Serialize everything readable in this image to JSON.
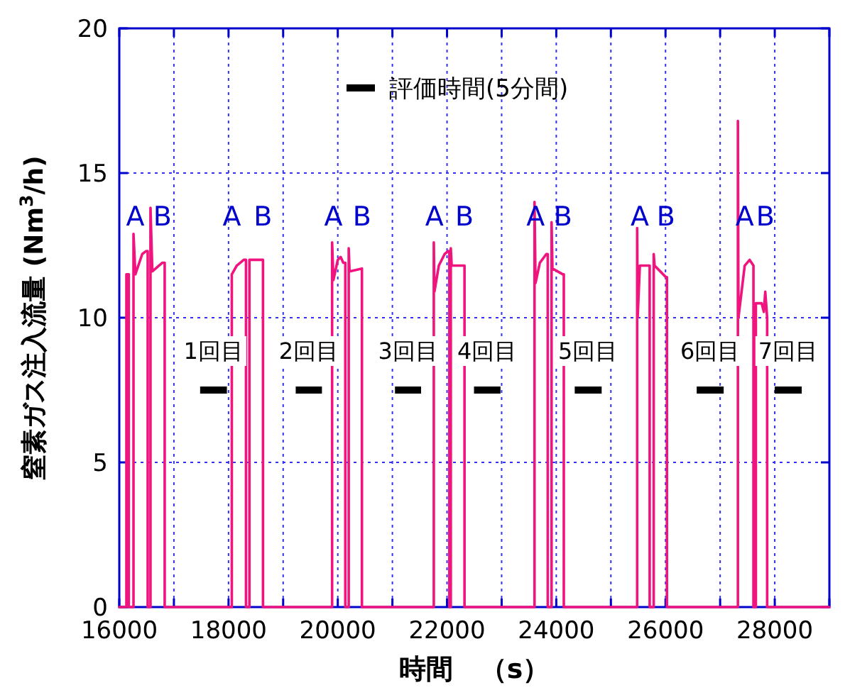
{
  "chart_data": {
    "type": "line",
    "xlabel": "時間　（s）",
    "ylabel": "窒素ガス注入流量 (Nm$^{3}$/h)",
    "xlim": [
      16000,
      29000
    ],
    "xticks": [
      16000,
      {
        "value": 17000,
        "label": null
      },
      18000,
      {
        "value": 19000,
        "label": null
      },
      20000,
      {
        "value": 21000,
        "label": null
      },
      22000,
      {
        "value": 23000,
        "label": null
      },
      24000,
      {
        "value": 25000,
        "label": null
      },
      26000,
      {
        "value": 27000,
        "label": null
      },
      28000,
      {
        "value": 29000,
        "label": null
      }
    ],
    "ylim": [
      0,
      20
    ],
    "yticks": [
      0,
      5,
      10,
      15,
      20
    ],
    "grid": true,
    "legend": "top",
    "line_style": "solid",
    "marker": "none",
    "series": [
      {
        "name": null,
        "color": "#f0147f",
        "x": [
          16000,
          16130,
          16130,
          16174,
          16174,
          16260,
          16260,
          16294,
          16420,
          16490,
          16520,
          16520,
          16571,
          16571,
          16605,
          16790,
          16831,
          16831,
          18060,
          18060,
          18150,
          18278,
          18320,
          18320,
          18382,
          18382,
          18631,
          18631,
          19896,
          19896,
          19920,
          20000,
          20052,
          20100,
          20138,
          20138,
          20200,
          20200,
          20215,
          20442,
          20442,
          21758,
          21758,
          21770,
          21850,
          21956,
          22020,
          22043,
          22043,
          22069,
          22069,
          22085,
          22320,
          22320,
          23602,
          23602,
          23620,
          23700,
          23818,
          23844,
          23844,
          23914,
          23914,
          23930,
          24122,
          24138,
          24138,
          25481,
          25481,
          25490,
          25530,
          25710,
          25710,
          25784,
          25784,
          25800,
          26008,
          26026,
          26026,
          27325,
          27325,
          27335,
          27450,
          27540,
          27610,
          27610,
          27654,
          27654,
          27760,
          27800,
          27826,
          27861,
          27861,
          29000
        ],
        "values": [
          0,
          0,
          11.5,
          11.5,
          0,
          0,
          12.9,
          11.5,
          12.2,
          12.3,
          12.3,
          0,
          0,
          13.8,
          11.6,
          11.9,
          11.9,
          0,
          0,
          11.5,
          11.8,
          12.0,
          12.0,
          0,
          0,
          12.0,
          12.0,
          0,
          0,
          12.6,
          11.3,
          12.0,
          12.1,
          11.9,
          11.9,
          0,
          0,
          12.4,
          11.6,
          11.7,
          0,
          0,
          12.6,
          10.9,
          11.8,
          12.2,
          12.3,
          12.3,
          0,
          0,
          12.4,
          11.8,
          11.8,
          0,
          0,
          14.0,
          11.2,
          11.9,
          12.2,
          12.2,
          0,
          0,
          13.3,
          11.7,
          11.5,
          11.5,
          0,
          0,
          13.1,
          10.0,
          11.8,
          11.8,
          0,
          0,
          12.2,
          11.8,
          11.4,
          11.4,
          0,
          0,
          16.8,
          10.0,
          11.8,
          12.0,
          11.8,
          0,
          0,
          10.5,
          10.5,
          10.2,
          10.9,
          10.0,
          0,
          0
        ]
      },
      {
        "name": "評価時間(5分間)",
        "color": "#000000",
        "x": [
          17480,
          17970,
          null,
          19230,
          19710,
          null,
          21047,
          21525,
          null,
          22494,
          22979,
          null,
          24338,
          24831,
          null,
          26571,
          27065,
          null,
          27999,
          28494
        ],
        "values": [
          7.5,
          7.5,
          null,
          7.5,
          7.5,
          null,
          7.5,
          7.5,
          null,
          7.5,
          7.5,
          null,
          7.5,
          7.5,
          null,
          7.5,
          7.5,
          null,
          7.5,
          7.5
        ]
      }
    ],
    "annotations": [
      {
        "text": "A",
        "x": 16294,
        "y": 11.5
      },
      {
        "text": "B",
        "x": 16790,
        "y": 11.9
      },
      {
        "text": "A",
        "x": 18060,
        "y": 11.5
      },
      {
        "text": "B",
        "x": 18631,
        "y": 12.0
      },
      {
        "text": "A",
        "x": 19920,
        "y": 11.3
      },
      {
        "text": "B",
        "x": 20442,
        "y": 11.7
      },
      {
        "text": "A",
        "x": 21770,
        "y": 10.9
      },
      {
        "text": "B",
        "x": 22320,
        "y": 11.8
      },
      {
        "text": "A",
        "x": 23620,
        "y": 11.2
      },
      {
        "text": "B",
        "x": 24122,
        "y": 11.5
      },
      {
        "text": "A",
        "x": 25530,
        "y": 11.8
      },
      {
        "text": "B",
        "x": 26008,
        "y": 11.4
      },
      {
        "text": "A",
        "x": 27450,
        "y": 11.8
      },
      {
        "text": "B",
        "x": 27826,
        "y": 10.9
      },
      {
        "text": "1回目",
        "x": 17725,
        "y": 7.5
      },
      {
        "text": "2回目",
        "x": 19470,
        "y": 7.5
      },
      {
        "text": "3回目",
        "x": 21286,
        "y": 7.5
      },
      {
        "text": "4回目",
        "x": 22736,
        "y": 7.5
      },
      {
        "text": "5回目",
        "x": 24584,
        "y": 7.5
      },
      {
        "text": "6回目",
        "x": 26818,
        "y": 7.5
      },
      {
        "text": "7回目",
        "x": 28246,
        "y": 7.5
      }
    ]
  }
}
